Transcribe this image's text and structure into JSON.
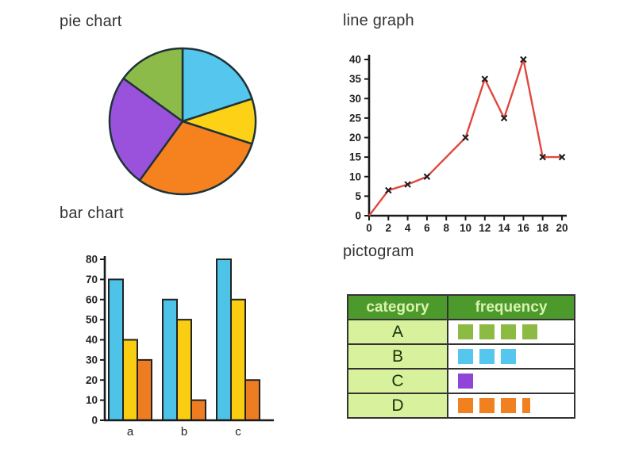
{
  "chart_data": [
    {
      "id": "pie",
      "type": "pie",
      "title": "pie chart",
      "slices": [
        {
          "name": "blue",
          "fraction": 0.2,
          "color": "#55c6ed"
        },
        {
          "name": "yellow",
          "fraction": 0.1,
          "color": "#fcd116"
        },
        {
          "name": "orange",
          "fraction": 0.3,
          "color": "#f5821f"
        },
        {
          "name": "purple",
          "fraction": 0.25,
          "color": "#9a52dd"
        },
        {
          "name": "green",
          "fraction": 0.15,
          "color": "#8cbb4a"
        }
      ],
      "start_angle_deg": 0,
      "stroke_color": "#1f3338"
    },
    {
      "id": "line",
      "type": "line",
      "title": "line graph",
      "points": [
        {
          "x": 0,
          "y": 0,
          "marker": false
        },
        {
          "x": 2,
          "y": 6.5,
          "marker": true
        },
        {
          "x": 4,
          "y": 8,
          "marker": true
        },
        {
          "x": 6,
          "y": 10,
          "marker": true
        },
        {
          "x": 10,
          "y": 20,
          "marker": true
        },
        {
          "x": 12,
          "y": 35,
          "marker": true
        },
        {
          "x": 14,
          "y": 25,
          "marker": true
        },
        {
          "x": 16,
          "y": 40,
          "marker": true
        },
        {
          "x": 18,
          "y": 15,
          "marker": true
        },
        {
          "x": 20,
          "y": 15,
          "marker": true
        }
      ],
      "xlim": [
        0,
        20
      ],
      "ylim": [
        0,
        40
      ],
      "xticks": [
        0,
        2,
        4,
        6,
        8,
        10,
        12,
        14,
        16,
        18,
        20
      ],
      "yticks": [
        0,
        5,
        10,
        15,
        20,
        25,
        30,
        35,
        40
      ],
      "line_color": "#e0483e",
      "marker_style": "x",
      "marker_color": "#1a1a1a",
      "axis_color": "#1a1a1a"
    },
    {
      "id": "bar",
      "type": "bar",
      "title": "bar chart",
      "categories": [
        "a",
        "b",
        "c"
      ],
      "series": [
        {
          "name": "blue",
          "color": "#4ec3e8",
          "values": [
            70,
            60,
            80
          ]
        },
        {
          "name": "yellow",
          "color": "#f8cd12",
          "values": [
            40,
            50,
            60
          ]
        },
        {
          "name": "orange",
          "color": "#ee7d22",
          "values": [
            30,
            10,
            20
          ]
        }
      ],
      "ylim": [
        0,
        80
      ],
      "yticks": [
        0,
        10,
        20,
        30,
        40,
        50,
        60,
        70,
        80
      ],
      "bar_outline_color": "#222222",
      "axis_color": "#1a1a1a"
    },
    {
      "id": "pictogram",
      "type": "table",
      "title": "pictogram",
      "columns": [
        "category",
        "frequency"
      ],
      "rows": [
        {
          "category": "A",
          "count": 4,
          "color": "#8cba42"
        },
        {
          "category": "B",
          "count": 3,
          "color": "#55c6ed"
        },
        {
          "category": "C",
          "count": 1,
          "color": "#8f46d8"
        },
        {
          "category": "D",
          "count": 3.5,
          "color": "#f08020"
        }
      ],
      "header_bg": "#4d9a2c",
      "header_text_color": "#d9f2ae",
      "category_cell_bg": "#d7f19c",
      "border_color": "#333333"
    }
  ]
}
